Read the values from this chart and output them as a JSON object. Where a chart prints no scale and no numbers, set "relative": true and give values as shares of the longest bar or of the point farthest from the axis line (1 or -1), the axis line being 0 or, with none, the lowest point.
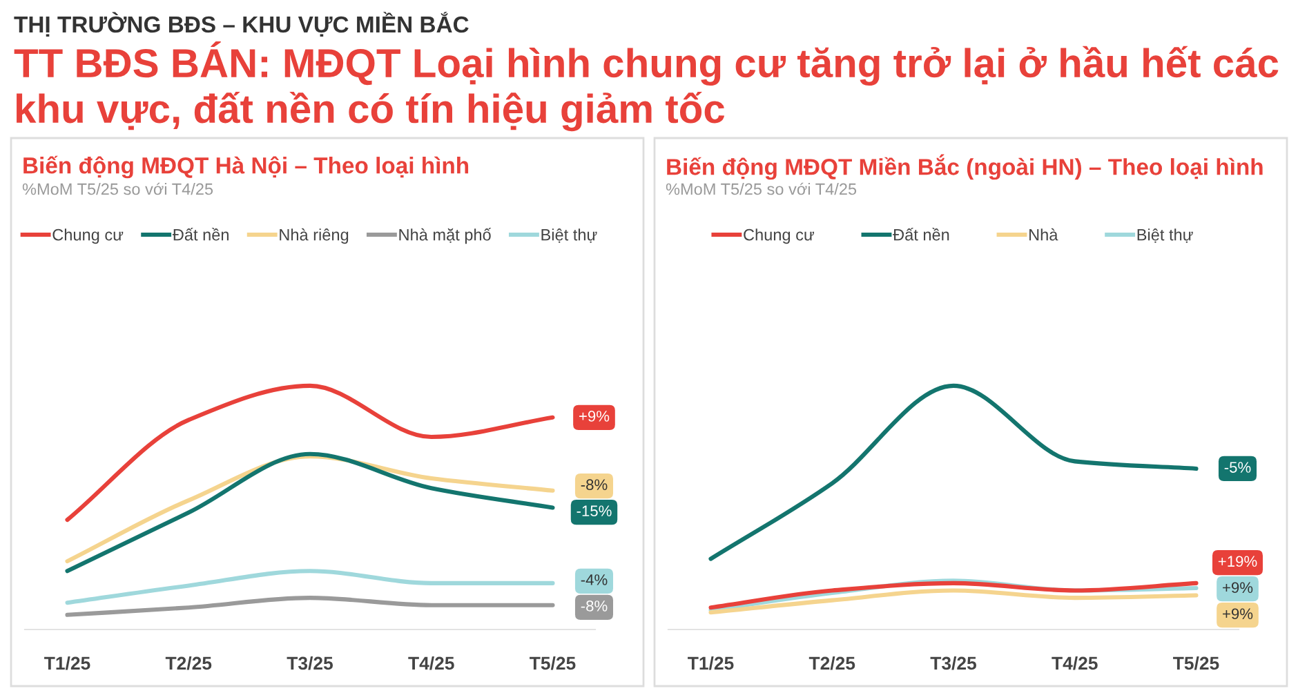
{
  "chart_data": [
    {
      "type": "line",
      "title": "Biến động MĐQT Hà Nội – Theo loại hình",
      "subtitle": "%MoM T5/25 so với T4/25",
      "annotations": [
        "THỊ TRƯỜNG BĐS – KHU VỰC MIỀN BẮC",
        "TT BĐS BÁN: MĐQT Loại hình chung cư tăng trở lại ở hầu hết các khu vực, đất nền có tín hiệu giảm tốc",
        {
          "text": "+9%",
          "x": "T5/25",
          "y": 0.87
        },
        {
          "text": "-15%",
          "x": "T5/25",
          "y": 0.5
        },
        {
          "text": "-8%",
          "x": "T5/25",
          "y": 0.57
        },
        {
          "text": "-8%",
          "x": "T5/25",
          "y": 0.1
        },
        {
          "text": "-4%",
          "x": "T5/25",
          "y": 0.19
        }
      ],
      "categories": [
        "T1/25",
        "T2/25",
        "T3/25",
        "T4/25",
        "T5/25"
      ],
      "relative": true,
      "legend": "top",
      "tick_labels": "x",
      "grid": false,
      "marker": "none",
      "line_style": "solid",
      "series": [
        {
          "name": "Chung cư",
          "color": "#e8413a",
          "values": [
            0.45,
            0.86,
            1,
            0.79,
            0.87
          ]
        },
        {
          "name": "Đất nền",
          "color": "#13756e",
          "values": [
            0.24,
            0.48,
            0.72,
            0.58,
            0.5
          ]
        },
        {
          "name": "Nhà riêng",
          "color": "#f5d48e",
          "values": [
            0.28,
            0.53,
            0.71,
            0.62,
            0.57
          ]
        },
        {
          "name": "Nhà mặt phố",
          "color": "#9a9a9a",
          "values": [
            0.06,
            0.09,
            0.13,
            0.1,
            0.1
          ]
        },
        {
          "name": "Biệt thự",
          "color": "#9fd8dc",
          "values": [
            0.11,
            0.18,
            0.24,
            0.19,
            0.19
          ]
        }
      ]
    },
    {
      "type": "line",
      "title": "Biến động MĐQT Miền Bắc (ngoài HN) – Theo loại hình",
      "subtitle": "%MoM T5/25 so với T4/25",
      "annotations": [
        {
          "text": "+19%",
          "x": "T5/25",
          "y": 0.19
        },
        {
          "text": "-5%",
          "x": "T5/25",
          "y": 0.66
        },
        {
          "text": "+9%",
          "x": "T5/25",
          "y": 0.14
        },
        {
          "text": "+9%",
          "x": "T5/25",
          "y": 0.17
        }
      ],
      "categories": [
        "T1/25",
        "T2/25",
        "T3/25",
        "T4/25",
        "T5/25"
      ],
      "relative": true,
      "legend": "top",
      "tick_labels": "x",
      "grid": false,
      "marker": "none",
      "line_style": "solid",
      "series": [
        {
          "name": "Chung cư",
          "color": "#e8413a",
          "values": [
            0.09,
            0.16,
            0.19,
            0.16,
            0.19
          ]
        },
        {
          "name": "Đất nền",
          "color": "#13756e",
          "values": [
            0.29,
            0.6,
            1,
            0.69,
            0.66
          ]
        },
        {
          "name": "Nhà",
          "color": "#f5d48e",
          "values": [
            0.07,
            0.12,
            0.16,
            0.13,
            0.14
          ]
        },
        {
          "name": "Biệt thự",
          "color": "#9fd8dc",
          "values": [
            0.08,
            0.15,
            0.2,
            0.16,
            0.17
          ]
        }
      ]
    }
  ]
}
